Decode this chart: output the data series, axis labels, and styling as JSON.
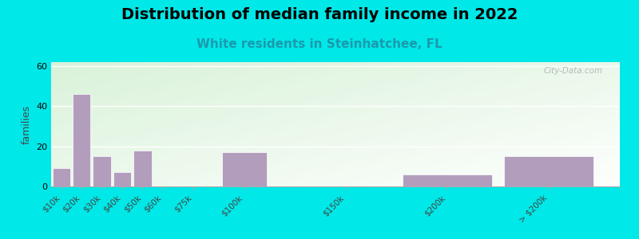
{
  "title": "Distribution of median family income in 2022",
  "subtitle": "White residents in Steinhatchee, FL",
  "ylabel": "families",
  "categories": [
    "$10k",
    "$20k",
    "$30k",
    "$40k",
    "$50k",
    "$60k",
    "$75k",
    "$100k",
    "$150k",
    "$200k",
    "> $200k"
  ],
  "positions": [
    10,
    20,
    30,
    40,
    50,
    60,
    75,
    100,
    150,
    200,
    250
  ],
  "widths": [
    10,
    10,
    10,
    10,
    10,
    10,
    15,
    25,
    50,
    50,
    50
  ],
  "values": [
    9,
    46,
    15,
    7,
    18,
    0,
    0,
    17,
    0,
    6,
    15
  ],
  "bar_color": "#b39dbd",
  "ylim": [
    0,
    62
  ],
  "yticks": [
    0,
    20,
    40,
    60
  ],
  "background_outer": "#00e8e8",
  "title_fontsize": 14,
  "subtitle_fontsize": 11,
  "subtitle_color": "#1a9aad",
  "watermark": "City-Data.com"
}
